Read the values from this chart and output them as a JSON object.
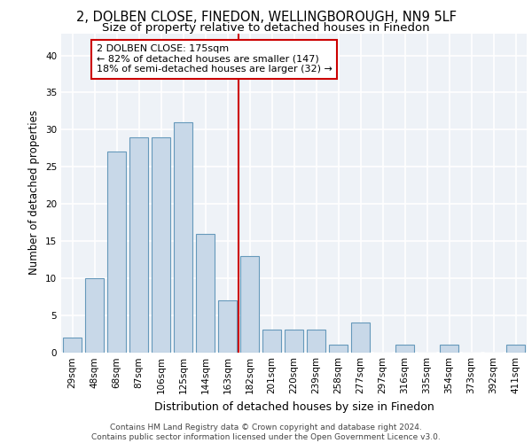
{
  "title1": "2, DOLBEN CLOSE, FINEDON, WELLINGBOROUGH, NN9 5LF",
  "title2": "Size of property relative to detached houses in Finedon",
  "xlabel": "Distribution of detached houses by size in Finedon",
  "ylabel": "Number of detached properties",
  "categories": [
    "29sqm",
    "48sqm",
    "68sqm",
    "87sqm",
    "106sqm",
    "125sqm",
    "144sqm",
    "163sqm",
    "182sqm",
    "201sqm",
    "220sqm",
    "239sqm",
    "258sqm",
    "277sqm",
    "297sqm",
    "316sqm",
    "335sqm",
    "354sqm",
    "373sqm",
    "392sqm",
    "411sqm"
  ],
  "values": [
    2,
    10,
    27,
    29,
    29,
    31,
    16,
    7,
    13,
    3,
    3,
    3,
    1,
    4,
    0,
    1,
    0,
    1,
    0,
    0,
    1
  ],
  "bar_color": "#c8d8e8",
  "bar_edge_color": "#6699bb",
  "reference_line_x": 7.5,
  "annotation_text": "2 DOLBEN CLOSE: 175sqm\n← 82% of detached houses are smaller (147)\n18% of semi-detached houses are larger (32) →",
  "annotation_box_color": "#ffffff",
  "annotation_box_edge": "#cc0000",
  "ref_line_color": "#cc0000",
  "ylim": [
    0,
    43
  ],
  "yticks": [
    0,
    5,
    10,
    15,
    20,
    25,
    30,
    35,
    40
  ],
  "background_color": "#eef2f7",
  "grid_color": "#ffffff",
  "footer_text": "Contains HM Land Registry data © Crown copyright and database right 2024.\nContains public sector information licensed under the Open Government Licence v3.0.",
  "title1_fontsize": 10.5,
  "title2_fontsize": 9.5,
  "xlabel_fontsize": 9,
  "ylabel_fontsize": 8.5,
  "tick_fontsize": 7.5,
  "annotation_fontsize": 8,
  "footer_fontsize": 6.5
}
